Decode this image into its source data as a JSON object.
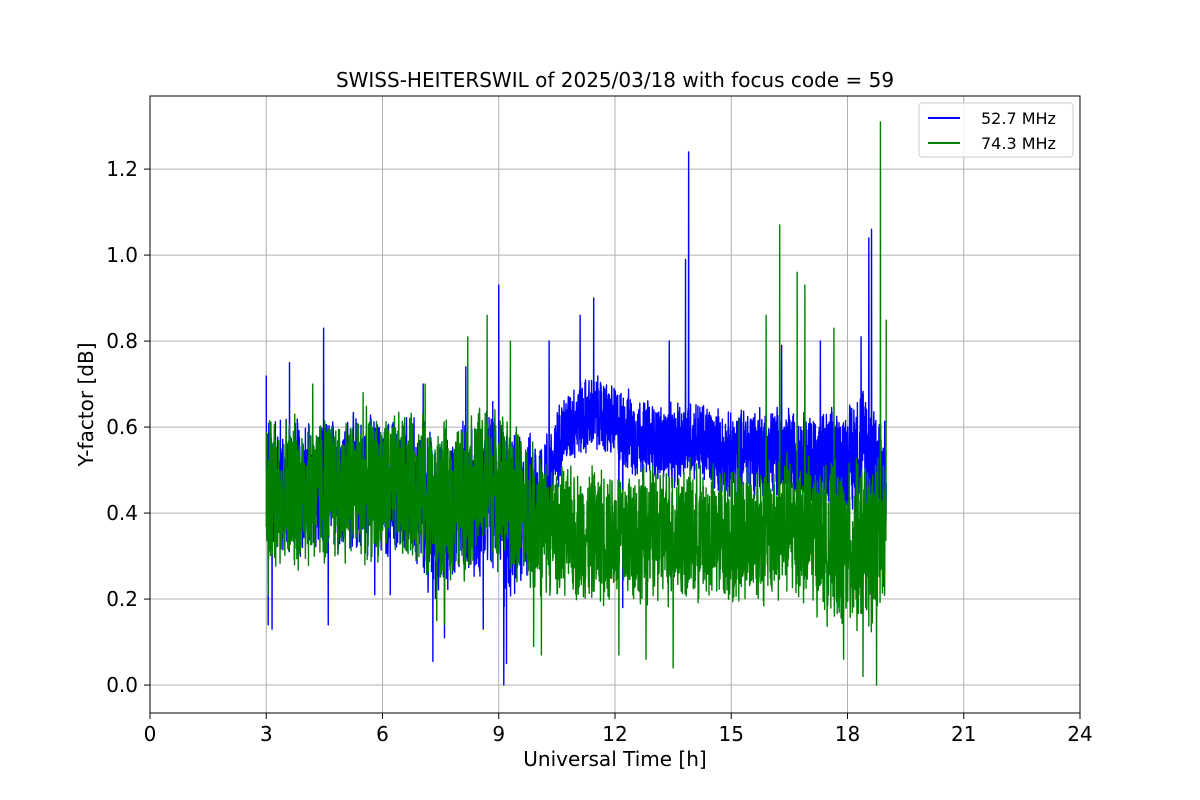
{
  "chart_data": {
    "type": "line",
    "title": "SWISS-HEITERSWIL of 2025/03/18 with focus code = 59",
    "xlabel": "Universal Time [h]",
    "ylabel": "Y-factor [dB]",
    "xlim": [
      0,
      24
    ],
    "ylim": [
      -0.065,
      1.37
    ],
    "xticks": [
      0,
      3,
      6,
      9,
      12,
      15,
      18,
      21,
      24
    ],
    "xtick_labels": [
      "0",
      "3",
      "6",
      "9",
      "12",
      "15",
      "18",
      "21",
      "24"
    ],
    "yticks": [
      0.0,
      0.2,
      0.4,
      0.6,
      0.8,
      1.0,
      1.2
    ],
    "ytick_labels": [
      "0.0",
      "0.2",
      "0.4",
      "0.6",
      "0.8",
      "1.0",
      "1.2"
    ],
    "grid": true,
    "legend_position": "top-right",
    "series": [
      {
        "name": "52.7 MHz",
        "color": "#0000ff",
        "x_start": 3.0,
        "x_end": 19.0,
        "x": [
          3.0,
          3.1,
          3.4,
          4.0,
          4.5,
          5.0,
          6.0,
          7.0,
          7.2,
          7.5,
          8.0,
          8.3,
          9.0,
          9.1,
          9.5,
          10.0,
          10.4,
          10.6,
          11.0,
          11.5,
          12.0,
          12.5,
          13.0,
          13.5,
          13.9,
          14.3,
          15.0,
          15.5,
          16.0,
          16.5,
          17.0,
          17.5,
          18.0,
          18.3,
          18.6,
          18.9,
          19.0
        ],
        "center": [
          0.45,
          0.48,
          0.46,
          0.46,
          0.46,
          0.47,
          0.46,
          0.44,
          0.4,
          0.38,
          0.44,
          0.42,
          0.47,
          0.4,
          0.4,
          0.43,
          0.5,
          0.58,
          0.62,
          0.63,
          0.61,
          0.58,
          0.57,
          0.55,
          0.58,
          0.56,
          0.53,
          0.55,
          0.54,
          0.54,
          0.53,
          0.51,
          0.52,
          0.55,
          0.55,
          0.45,
          0.45
        ],
        "spread": [
          0.17,
          0.18,
          0.19,
          0.18,
          0.18,
          0.18,
          0.18,
          0.2,
          0.22,
          0.2,
          0.2,
          0.2,
          0.22,
          0.25,
          0.2,
          0.18,
          0.12,
          0.1,
          0.1,
          0.1,
          0.1,
          0.11,
          0.1,
          0.11,
          0.1,
          0.11,
          0.11,
          0.12,
          0.12,
          0.12,
          0.12,
          0.14,
          0.15,
          0.17,
          0.2,
          0.2,
          0.2
        ],
        "spikes": [
          [
            3.0,
            0.72
          ],
          [
            3.05,
            0.14
          ],
          [
            3.15,
            0.13
          ],
          [
            3.6,
            0.75
          ],
          [
            4.48,
            0.83
          ],
          [
            4.6,
            0.14
          ],
          [
            5.8,
            0.21
          ],
          [
            6.2,
            0.21
          ],
          [
            7.05,
            0.7
          ],
          [
            7.3,
            0.055
          ],
          [
            7.6,
            0.11
          ],
          [
            8.15,
            0.74
          ],
          [
            8.6,
            0.13
          ],
          [
            9.0,
            0.93
          ],
          [
            9.13,
            0.0
          ],
          [
            9.2,
            0.05
          ],
          [
            10.3,
            0.8
          ],
          [
            11.1,
            0.86
          ],
          [
            11.45,
            0.9
          ],
          [
            12.1,
            0.29
          ],
          [
            12.2,
            0.18
          ],
          [
            13.4,
            0.8
          ],
          [
            13.82,
            0.99
          ],
          [
            13.9,
            1.24
          ],
          [
            16.3,
            0.79
          ],
          [
            17.3,
            0.8
          ],
          [
            18.35,
            0.81
          ],
          [
            18.55,
            1.04
          ],
          [
            18.62,
            1.06
          ],
          [
            18.65,
            0.24
          ],
          [
            18.93,
            0.23
          ]
        ]
      },
      {
        "name": "74.3 MHz",
        "color": "#008000",
        "x_start": 3.0,
        "x_end": 19.0,
        "x": [
          3.0,
          3.5,
          4.0,
          5.0,
          6.0,
          7.0,
          7.3,
          8.0,
          8.5,
          9.0,
          9.5,
          10.0,
          10.5,
          11.0,
          12.0,
          13.0,
          14.0,
          15.0,
          16.0,
          16.5,
          17.0,
          17.5,
          18.0,
          18.5,
          19.0
        ],
        "center": [
          0.44,
          0.45,
          0.45,
          0.46,
          0.46,
          0.46,
          0.42,
          0.43,
          0.47,
          0.46,
          0.42,
          0.38,
          0.36,
          0.35,
          0.35,
          0.35,
          0.35,
          0.35,
          0.36,
          0.37,
          0.36,
          0.33,
          0.31,
          0.33,
          0.34
        ],
        "spread": [
          0.2,
          0.2,
          0.2,
          0.19,
          0.19,
          0.19,
          0.2,
          0.2,
          0.2,
          0.2,
          0.2,
          0.19,
          0.16,
          0.17,
          0.18,
          0.18,
          0.18,
          0.18,
          0.19,
          0.19,
          0.19,
          0.2,
          0.22,
          0.22,
          0.22
        ],
        "spikes": [
          [
            3.05,
            0.21
          ],
          [
            4.2,
            0.7
          ],
          [
            5.5,
            0.68
          ],
          [
            7.1,
            0.7
          ],
          [
            7.4,
            0.15
          ],
          [
            7.6,
            0.14
          ],
          [
            8.2,
            0.81
          ],
          [
            8.7,
            0.86
          ],
          [
            9.3,
            0.8
          ],
          [
            9.9,
            0.09
          ],
          [
            10.1,
            0.07
          ],
          [
            12.1,
            0.07
          ],
          [
            12.8,
            0.06
          ],
          [
            13.5,
            0.04
          ],
          [
            15.2,
            0.62
          ],
          [
            15.9,
            0.86
          ],
          [
            16.25,
            1.07
          ],
          [
            16.7,
            0.96
          ],
          [
            16.9,
            0.93
          ],
          [
            17.65,
            0.83
          ],
          [
            17.9,
            0.06
          ],
          [
            18.4,
            0.02
          ],
          [
            18.75,
            0.58
          ],
          [
            18.75,
            0.0
          ],
          [
            18.85,
            1.31
          ],
          [
            19.0,
            0.85
          ]
        ]
      }
    ]
  }
}
